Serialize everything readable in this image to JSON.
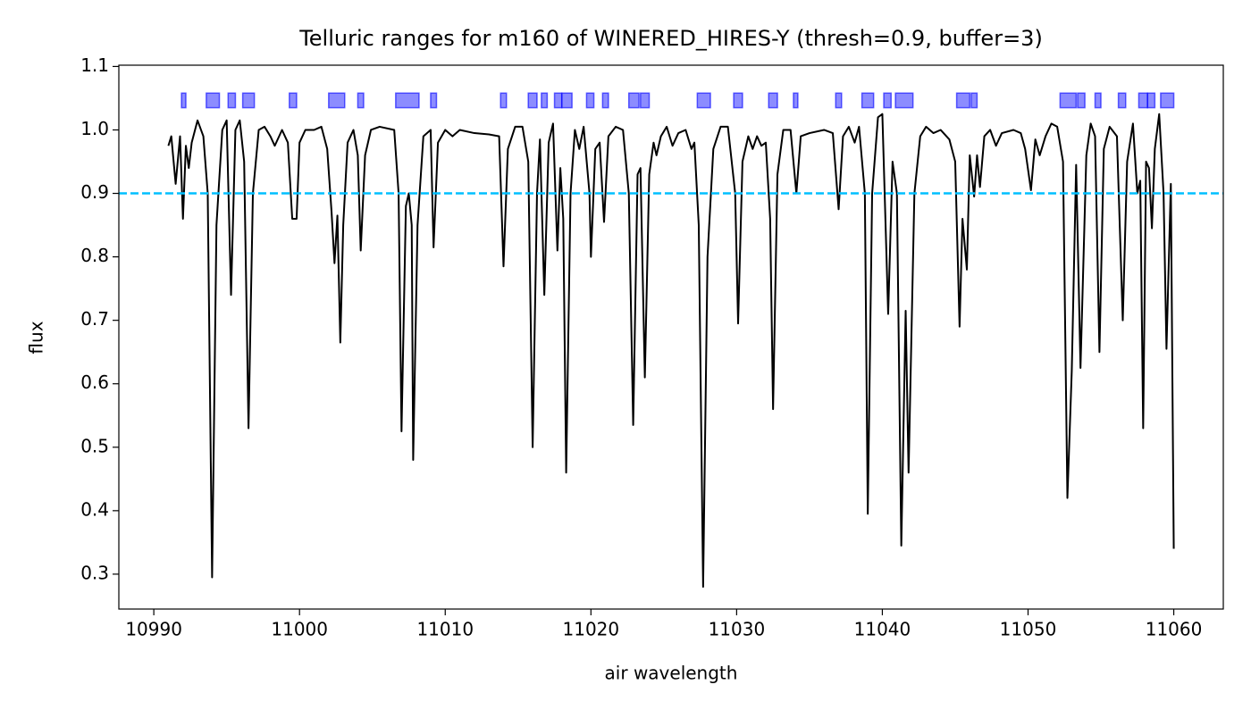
{
  "chart_data": {
    "type": "line",
    "title": "Telluric ranges for m160 of WINERED_HIRES-Y (thresh=0.9, buffer=3)",
    "x_label": "air wavelength",
    "y_label": "flux",
    "color": "#000000",
    "xlim": [
      10987.6,
      11063.4
    ],
    "ylim": [
      0.245,
      1.102
    ],
    "xticks": [
      10990,
      11000,
      11010,
      11020,
      11030,
      11040,
      11050,
      11060
    ],
    "yticks": [
      0.3,
      0.4,
      0.5,
      0.6,
      0.7,
      0.8,
      0.9,
      {
        "value": 1,
        "label": "1.0"
      },
      1.1
    ],
    "threshold": 0.9,
    "threshold_color": "#00bfff",
    "range_color": "#0000ff",
    "range_y": [
      1.035,
      1.058
    ],
    "ranges": [
      [
        10991.9,
        10992.2
      ],
      [
        10993.6,
        10994.5
      ],
      [
        10995.1,
        10995.6
      ],
      [
        10996.1,
        10996.9
      ],
      [
        10999.3,
        10999.8
      ],
      [
        11002.0,
        11003.1
      ],
      [
        11004.0,
        11004.4
      ],
      [
        11006.6,
        11008.2
      ],
      [
        11009.0,
        11009.4
      ],
      [
        11013.8,
        11014.2
      ],
      [
        11015.7,
        11016.3
      ],
      [
        11016.6,
        11017.0
      ],
      [
        11017.5,
        11018.0
      ],
      [
        11018.0,
        11018.7
      ],
      [
        11019.7,
        11020.2
      ],
      [
        11020.8,
        11021.2
      ],
      [
        11022.6,
        11023.3
      ],
      [
        11023.4,
        11024.0
      ],
      [
        11027.3,
        11028.2
      ],
      [
        11029.8,
        11030.4
      ],
      [
        11032.2,
        11032.8
      ],
      [
        11033.9,
        11034.2
      ],
      [
        11036.8,
        11037.2
      ],
      [
        11038.6,
        11039.4
      ],
      [
        11040.1,
        11040.6
      ],
      [
        11040.9,
        11042.1
      ],
      [
        11045.1,
        11046.0
      ],
      [
        11046.1,
        11046.5
      ],
      [
        11052.2,
        11053.3
      ],
      [
        11053.4,
        11053.9
      ],
      [
        11054.6,
        11055.0
      ],
      [
        11056.2,
        11056.7
      ],
      [
        11057.6,
        11058.2
      ],
      [
        11058.2,
        11058.7
      ],
      [
        11059.1,
        11060.0
      ]
    ],
    "x": [
      10991.0,
      10991.2,
      10991.5,
      10991.8,
      10992.0,
      10992.2,
      10992.4,
      10992.6,
      10993.0,
      10993.4,
      10993.7,
      10994.0,
      10994.3,
      10994.7,
      10995.0,
      10995.3,
      10995.6,
      10995.9,
      10996.2,
      10996.5,
      10996.8,
      10997.2,
      10997.6,
      10998.0,
      10998.3,
      10998.8,
      10999.2,
      10999.5,
      10999.8,
      11000.0,
      11000.4,
      11001.0,
      11001.5,
      11001.9,
      11002.2,
      11002.4,
      11002.6,
      11002.8,
      11003.0,
      11003.3,
      11003.7,
      11004.0,
      11004.2,
      11004.5,
      11004.9,
      11005.5,
      11006.5,
      11006.8,
      11007.0,
      11007.3,
      11007.5,
      11007.7,
      11007.8,
      11008.1,
      11008.5,
      11009.0,
      11009.2,
      11009.5,
      11010.0,
      11010.5,
      11011.0,
      11012.0,
      11013.0,
      11013.7,
      11014.0,
      11014.3,
      11014.8,
      11015.3,
      11015.7,
      11016.0,
      11016.3,
      11016.5,
      11016.8,
      11017.1,
      11017.4,
      11017.7,
      11017.9,
      11018.1,
      11018.3,
      11018.6,
      11018.9,
      11019.2,
      11019.5,
      11019.9,
      11020.0,
      11020.3,
      11020.6,
      11020.9,
      11021.2,
      11021.7,
      11022.2,
      11022.6,
      11022.9,
      11023.2,
      11023.4,
      11023.7,
      11024.0,
      11024.3,
      11024.5,
      11024.8,
      11025.2,
      11025.6,
      11026.0,
      11026.5,
      11026.9,
      11027.1,
      11027.4,
      11027.7,
      11028.0,
      11028.4,
      11028.9,
      11029.4,
      11029.9,
      11030.1,
      11030.4,
      11030.8,
      11031.1,
      11031.4,
      11031.7,
      11032.0,
      11032.3,
      11032.5,
      11032.8,
      11033.2,
      11033.7,
      11034.1,
      11034.4,
      11035.0,
      11036.0,
      11036.6,
      11037.0,
      11037.3,
      11037.7,
      11038.1,
      11038.4,
      11038.8,
      11039.0,
      11039.3,
      11039.7,
      11040.0,
      11040.4,
      11040.7,
      11041.0,
      11041.3,
      11041.6,
      11041.8,
      11042.2,
      11042.6,
      11043.0,
      11043.5,
      11044.0,
      11044.6,
      11045.0,
      11045.3,
      11045.5,
      11045.8,
      11046.0,
      11046.3,
      11046.5,
      11046.7,
      11047.0,
      11047.4,
      11047.8,
      11048.2,
      11049.0,
      11049.5,
      11049.8,
      11050.2,
      11050.5,
      11050.8,
      11051.2,
      11051.6,
      11052.0,
      11052.4,
      11052.7,
      11053.0,
      11053.3,
      11053.6,
      11054.0,
      11054.3,
      11054.6,
      11054.9,
      11055.2,
      11055.6,
      11056.1,
      11056.5,
      11056.8,
      11057.2,
      11057.5,
      11057.7,
      11057.9,
      11058.1,
      11058.3,
      11058.5,
      11058.7,
      11059.0,
      11059.3,
      11059.5,
      11059.8,
      11060.0
    ],
    "values": [
      0.975,
      0.99,
      0.915,
      0.99,
      0.86,
      0.975,
      0.94,
      0.98,
      1.015,
      0.99,
      0.9,
      0.295,
      0.85,
      1.0,
      1.015,
      0.74,
      1.0,
      1.015,
      0.95,
      0.53,
      0.9,
      1.0,
      1.005,
      0.99,
      0.975,
      1.0,
      0.98,
      0.86,
      0.86,
      0.98,
      1.0,
      1.0,
      1.005,
      0.97,
      0.87,
      0.79,
      0.865,
      0.665,
      0.85,
      0.98,
      1.0,
      0.96,
      0.81,
      0.96,
      1.0,
      1.005,
      1.0,
      0.9,
      0.525,
      0.88,
      0.9,
      0.85,
      0.48,
      0.85,
      0.99,
      1.0,
      0.815,
      0.98,
      1.0,
      0.99,
      1.0,
      0.995,
      0.993,
      0.99,
      0.785,
      0.97,
      1.005,
      1.005,
      0.95,
      0.5,
      0.9,
      0.985,
      0.74,
      0.98,
      1.01,
      0.81,
      0.94,
      0.86,
      0.46,
      0.9,
      1.0,
      0.97,
      1.005,
      0.9,
      0.8,
      0.97,
      0.98,
      0.855,
      0.99,
      1.005,
      1.0,
      0.9,
      0.535,
      0.93,
      0.94,
      0.61,
      0.93,
      0.98,
      0.96,
      0.99,
      1.005,
      0.975,
      0.995,
      1.0,
      0.97,
      0.98,
      0.85,
      0.28,
      0.8,
      0.97,
      1.005,
      1.005,
      0.9,
      0.695,
      0.95,
      0.99,
      0.97,
      0.99,
      0.975,
      0.98,
      0.86,
      0.56,
      0.93,
      1.0,
      1.0,
      0.9,
      0.99,
      0.995,
      1.0,
      0.995,
      0.875,
      0.99,
      1.005,
      0.98,
      1.005,
      0.9,
      0.395,
      0.9,
      1.02,
      1.025,
      0.71,
      0.95,
      0.9,
      0.345,
      0.715,
      0.46,
      0.9,
      0.99,
      1.005,
      0.995,
      1.0,
      0.985,
      0.95,
      0.69,
      0.86,
      0.78,
      0.96,
      0.895,
      0.96,
      0.91,
      0.99,
      1.0,
      0.975,
      0.995,
      1.0,
      0.995,
      0.97,
      0.905,
      0.985,
      0.96,
      0.99,
      1.01,
      1.005,
      0.95,
      0.42,
      0.62,
      0.945,
      0.625,
      0.96,
      1.01,
      0.99,
      0.65,
      0.97,
      1.005,
      0.99,
      0.7,
      0.95,
      1.01,
      0.9,
      0.92,
      0.53,
      0.95,
      0.94,
      0.845,
      0.97,
      1.025,
      0.9,
      0.655,
      0.915,
      0.34
    ]
  }
}
